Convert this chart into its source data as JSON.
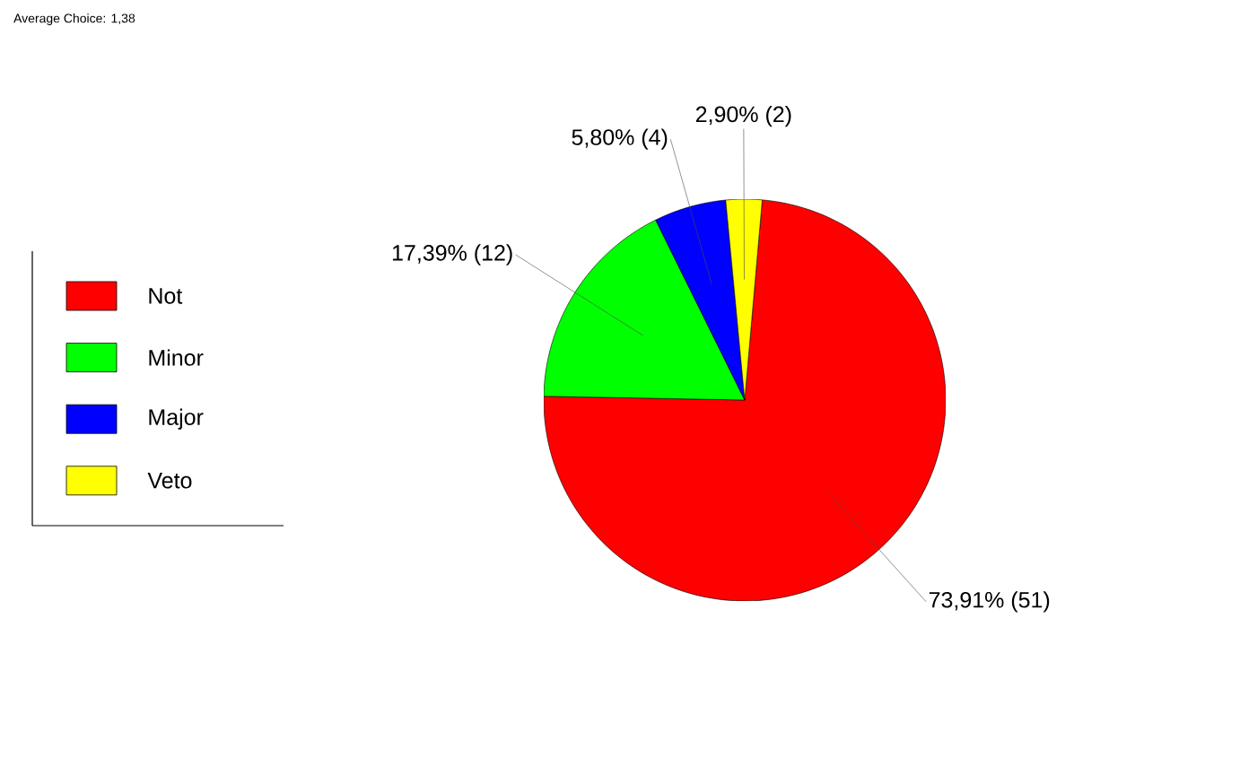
{
  "chart_data": {
    "type": "pie",
    "title": "Average Choice: 1,38",
    "categories": [
      "Not",
      "Minor",
      "Major",
      "Veto"
    ],
    "values": [
      51,
      12,
      4,
      2
    ],
    "value_labels": [
      "73,91% (51)",
      "17,39% (12)",
      "5,80% (4)",
      "2,90% (2)"
    ],
    "colors": [
      "#ff0000",
      "#00ff00",
      "#0000ff",
      "#ffff00"
    ],
    "legend": "left"
  }
}
